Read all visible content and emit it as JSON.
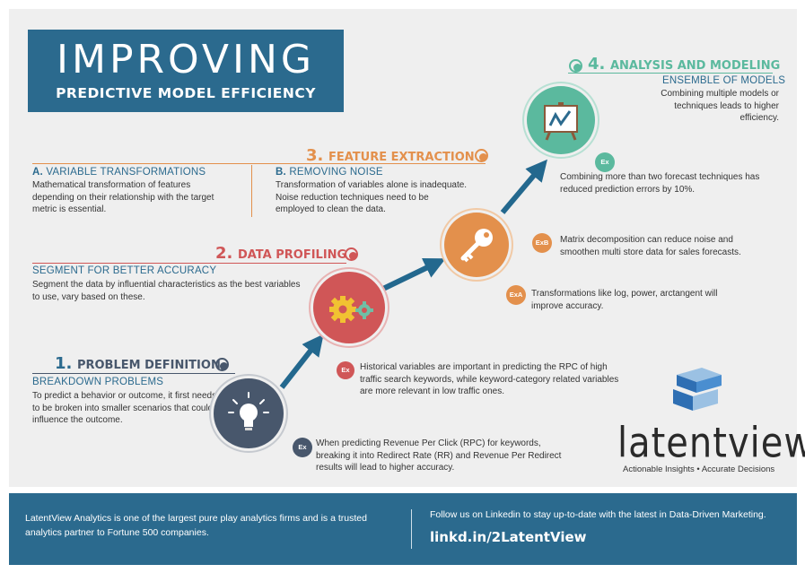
{
  "title": {
    "main": "IMPROVING",
    "sub": "PREDICTIVE MODEL EFFICIENCY"
  },
  "colors": {
    "step1": "#48576c",
    "step2": "#d05657",
    "step3": "#e3904c",
    "step4": "#5bb99e",
    "arrow": "#23688e",
    "brand": "#2b6a8e"
  },
  "step1": {
    "number": "1.",
    "label": "PROBLEM DEFINITION",
    "subheading": "BREAKDOWN PROBLEMS",
    "text": "To predict a behavior or outcome, it first needs to be broken into smaller scenarios that could influence the outcome.",
    "icon": "lightbulb-icon",
    "ex_label": "Ex",
    "example": "When predicting Revenue Per Click (RPC) for keywords, breaking it into Redirect Rate (RR) and Revenue Per Redirect results will lead to higher accuracy."
  },
  "step2": {
    "number": "2.",
    "label": "DATA PROFILING",
    "subheading": "SEGMENT FOR BETTER ACCURACY",
    "text": "Segment the data by influential characteristics as the best variables to use, vary based on these.",
    "icon": "gears-icon",
    "ex_label": "Ex",
    "example": "Historical variables are important in predicting the RPC of high traffic search keywords, while keyword-category related variables are more relevant in low traffic ones."
  },
  "step3": {
    "number": "3.",
    "label": "FEATURE EXTRACTION",
    "a_letter": "A.",
    "a_heading": "VARIABLE TRANSFORMATIONS",
    "a_text": "Mathematical transformation of features depending on their relationship with the target metric is essential.",
    "b_letter": "B.",
    "b_heading": "REMOVING NOISE",
    "b_text": "Transformation of variables alone is inadequate. Noise reduction techniques need to be employed to clean the data.",
    "icon": "key-icon",
    "exb_label": "ExB",
    "exb_text": "Matrix decomposition can reduce noise and smoothen multi store data for sales forecasts.",
    "exa_label": "ExA",
    "exa_text": "Transformations like log, power, arctangent will improve accuracy."
  },
  "step4": {
    "number": "4.",
    "label": "ANALYSIS AND MODELING",
    "subheading": "ENSEMBLE OF MODELS",
    "text": "Combining multiple models or techniques leads to higher efficiency.",
    "icon": "easel-chart-icon",
    "ex_label": "Ex",
    "example": "Combining more than two forecast techniques has reduced prediction errors by 10%."
  },
  "logo": {
    "icon": "latentview-cube-icon",
    "wordmark": "latentview",
    "tagline": "Actionable Insights • Accurate Decisions"
  },
  "footer": {
    "about": "LatentView Analytics is one of the largest pure play analytics firms and is a trusted analytics partner to Fortune 500 companies.",
    "follow": "Follow us on Linkedin to stay up-to-date with the latest in Data-Driven Marketing.",
    "link": "linkd.in/2LatentView"
  }
}
